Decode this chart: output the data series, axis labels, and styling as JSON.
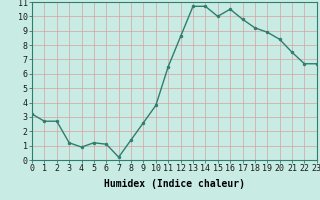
{
  "x": [
    0,
    1,
    2,
    3,
    4,
    5,
    6,
    7,
    8,
    9,
    10,
    11,
    12,
    13,
    14,
    15,
    16,
    17,
    18,
    19,
    20,
    21,
    22,
    23
  ],
  "y": [
    3.2,
    2.7,
    2.7,
    1.2,
    0.9,
    1.2,
    1.1,
    0.2,
    1.4,
    2.6,
    3.8,
    6.5,
    8.6,
    10.7,
    10.7,
    10.0,
    10.5,
    9.8,
    9.2,
    8.9,
    8.4,
    7.5,
    6.7,
    6.7
  ],
  "line_color": "#2e7d6e",
  "marker": "o",
  "marker_size": 2,
  "linewidth": 1.0,
  "bg_color": "#c8ece4",
  "grid_color": "#d8a0a0",
  "xlabel": "Humidex (Indice chaleur)",
  "xlabel_fontsize": 7,
  "xlabel_bold": true,
  "xlim": [
    0,
    23
  ],
  "ylim": [
    0,
    11
  ],
  "yticks": [
    0,
    1,
    2,
    3,
    4,
    5,
    6,
    7,
    8,
    9,
    10,
    11
  ],
  "xticks": [
    0,
    1,
    2,
    3,
    4,
    5,
    6,
    7,
    8,
    9,
    10,
    11,
    12,
    13,
    14,
    15,
    16,
    17,
    18,
    19,
    20,
    21,
    22,
    23
  ],
  "xtick_labels": [
    "0",
    "1",
    "2",
    "3",
    "4",
    "5",
    "6",
    "7",
    "8",
    "9",
    "10",
    "11",
    "12",
    "13",
    "14",
    "15",
    "16",
    "17",
    "18",
    "19",
    "20",
    "21",
    "22",
    "23"
  ],
  "tick_fontsize": 6,
  "figsize": [
    3.2,
    2.0
  ],
  "dpi": 100
}
